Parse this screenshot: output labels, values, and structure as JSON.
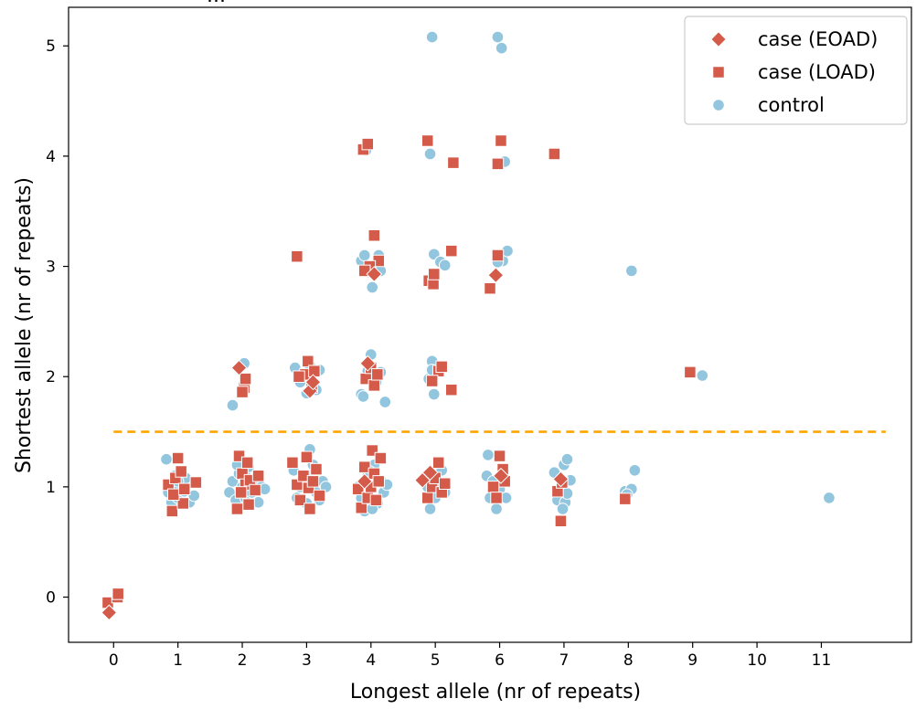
{
  "chart_data": {
    "type": "scatter",
    "title_fragment": "...",
    "xlabel": "Longest allele (nr of repeats)",
    "ylabel": "Shortest allele (nr of repeats)",
    "xlim": [
      -0.7,
      12.4
    ],
    "ylim": [
      -0.41,
      5.35
    ],
    "xticks": [
      "0",
      "1",
      "2",
      "3",
      "4",
      "5",
      "6",
      "7",
      "8",
      "9",
      "10",
      "11"
    ],
    "yticks": [
      "0",
      "1",
      "2",
      "3",
      "4",
      "5"
    ],
    "threshold_line": {
      "y": 1.5,
      "x_start": 0,
      "x_end": 12,
      "color": "#ffa500",
      "style": "dashed"
    },
    "legend": {
      "placement": "top-right"
    },
    "colors": {
      "case": "#d45a4a",
      "control": "#92c5de"
    },
    "series": [
      {
        "name": "case (EOAD)",
        "marker": "diamond",
        "points": [
          [
            -0.07,
            -0.14
          ],
          [
            1.95,
            2.08
          ],
          [
            3.05,
            1.87
          ],
          [
            3.1,
            1.95
          ],
          [
            3.95,
            2.12
          ],
          [
            4.05,
            2.93
          ],
          [
            4.8,
            1.06
          ],
          [
            4.92,
            1.13
          ],
          [
            5.94,
            2.92
          ],
          [
            6.95,
            1.07
          ],
          [
            6.02,
            1.1
          ],
          [
            3.9,
            1.05
          ]
        ]
      },
      {
        "name": "case (LOAD)",
        "marker": "square",
        "points": [
          [
            -0.09,
            -0.05
          ],
          [
            0.06,
            0.0
          ],
          [
            0.07,
            0.03
          ],
          [
            0.85,
            1.02
          ],
          [
            0.91,
            0.78
          ],
          [
            0.96,
            1.08
          ],
          [
            1.0,
            1.26
          ],
          [
            1.05,
            1.14
          ],
          [
            1.08,
            0.85
          ],
          [
            0.93,
            0.93
          ],
          [
            1.1,
            0.98
          ],
          [
            1.28,
            1.04
          ],
          [
            1.92,
            0.8
          ],
          [
            1.95,
            1.28
          ],
          [
            2.0,
            1.12
          ],
          [
            2.05,
            1.02
          ],
          [
            2.08,
            1.22
          ],
          [
            2.1,
            0.84
          ],
          [
            1.98,
            0.95
          ],
          [
            2.12,
            1.06
          ],
          [
            2.2,
            0.97
          ],
          [
            2.25,
            1.1
          ],
          [
            2.03,
            1.9
          ],
          [
            2.05,
            1.98
          ],
          [
            2.0,
            1.86
          ],
          [
            2.78,
            1.22
          ],
          [
            2.85,
            1.02
          ],
          [
            2.9,
            0.88
          ],
          [
            2.95,
            1.1
          ],
          [
            3.0,
            1.27
          ],
          [
            3.03,
            0.99
          ],
          [
            3.05,
            0.8
          ],
          [
            3.1,
            1.05
          ],
          [
            3.15,
            1.16
          ],
          [
            3.2,
            0.92
          ],
          [
            2.98,
            2.02
          ],
          [
            3.02,
            2.14
          ],
          [
            3.08,
            1.9
          ],
          [
            3.12,
            2.05
          ],
          [
            2.88,
            2.0
          ],
          [
            2.85,
            3.09
          ],
          [
            3.8,
            0.98
          ],
          [
            3.85,
            0.81
          ],
          [
            3.9,
            1.18
          ],
          [
            3.95,
            0.9
          ],
          [
            4.0,
            1.0
          ],
          [
            4.02,
            1.33
          ],
          [
            4.05,
            1.12
          ],
          [
            4.08,
            0.88
          ],
          [
            4.12,
            1.05
          ],
          [
            4.15,
            1.26
          ],
          [
            3.92,
            1.98
          ],
          [
            4.0,
            2.08
          ],
          [
            4.05,
            1.92
          ],
          [
            4.1,
            2.02
          ],
          [
            3.88,
            4.06
          ],
          [
            3.95,
            4.11
          ],
          [
            4.05,
            3.28
          ],
          [
            4.12,
            3.05
          ],
          [
            3.98,
            3.0
          ],
          [
            3.9,
            2.96
          ],
          [
            4.88,
            0.9
          ],
          [
            4.95,
            1.0
          ],
          [
            5.0,
            1.08
          ],
          [
            5.05,
            1.22
          ],
          [
            5.1,
            0.95
          ],
          [
            5.15,
            1.03
          ],
          [
            4.9,
            2.87
          ],
          [
            4.97,
            2.84
          ],
          [
            4.98,
            2.93
          ],
          [
            5.05,
            2.05
          ],
          [
            5.1,
            2.09
          ],
          [
            5.25,
            1.88
          ],
          [
            4.95,
            1.96
          ],
          [
            4.88,
            4.14
          ],
          [
            5.28,
            3.94
          ],
          [
            5.25,
            3.14
          ],
          [
            5.9,
            1.0
          ],
          [
            5.95,
            0.9
          ],
          [
            6.0,
            1.28
          ],
          [
            6.05,
            1.16
          ],
          [
            6.08,
            1.05
          ],
          [
            5.85,
            2.8
          ],
          [
            5.97,
            3.1
          ],
          [
            6.02,
            4.14
          ],
          [
            5.97,
            3.93
          ],
          [
            6.9,
            0.96
          ],
          [
            6.95,
            0.69
          ],
          [
            6.97,
            1.04
          ],
          [
            6.85,
            4.02
          ],
          [
            7.95,
            0.89
          ],
          [
            8.96,
            2.04
          ]
        ]
      },
      {
        "name": "control",
        "marker": "circle",
        "points": [
          [
            0.82,
            1.25
          ],
          [
            0.85,
            0.95
          ],
          [
            0.9,
            0.86
          ],
          [
            0.95,
            1.1
          ],
          [
            1.0,
            0.9
          ],
          [
            1.05,
            1.0
          ],
          [
            1.1,
            0.96
          ],
          [
            1.12,
            1.08
          ],
          [
            1.18,
            0.86
          ],
          [
            1.25,
            0.92
          ],
          [
            0.95,
            1.0
          ],
          [
            1.0,
            1.05
          ],
          [
            1.8,
            0.95
          ],
          [
            1.85,
            1.05
          ],
          [
            1.9,
            0.88
          ],
          [
            1.95,
            1.12
          ],
          [
            2.0,
            1.0
          ],
          [
            2.05,
            0.9
          ],
          [
            2.1,
            1.18
          ],
          [
            2.15,
            0.95
          ],
          [
            2.2,
            1.05
          ],
          [
            2.25,
            0.86
          ],
          [
            2.3,
            1.0
          ],
          [
            2.35,
            0.98
          ],
          [
            2.08,
            1.08
          ],
          [
            1.92,
            1.2
          ],
          [
            2.03,
            2.12
          ],
          [
            1.85,
            1.74
          ],
          [
            2.8,
            1.15
          ],
          [
            2.85,
            0.9
          ],
          [
            2.9,
            1.0
          ],
          [
            2.95,
            1.05
          ],
          [
            3.0,
            0.85
          ],
          [
            3.05,
            1.1
          ],
          [
            3.1,
            1.2
          ],
          [
            3.15,
            0.95
          ],
          [
            3.2,
            0.88
          ],
          [
            3.25,
            1.05
          ],
          [
            3.3,
            1.0
          ],
          [
            3.05,
            1.34
          ],
          [
            2.82,
            2.08
          ],
          [
            2.9,
            1.95
          ],
          [
            3.0,
            1.85
          ],
          [
            3.05,
            2.1
          ],
          [
            3.1,
            1.92
          ],
          [
            3.2,
            2.06
          ],
          [
            3.15,
            1.88
          ],
          [
            3.8,
            1.0
          ],
          [
            3.85,
            0.9
          ],
          [
            3.9,
            0.78
          ],
          [
            3.95,
            1.1
          ],
          [
            4.0,
            1.0
          ],
          [
            4.05,
            1.2
          ],
          [
            4.1,
            0.85
          ],
          [
            4.15,
            1.06
          ],
          [
            4.2,
            0.95
          ],
          [
            4.25,
            1.02
          ],
          [
            3.98,
            1.14
          ],
          [
            4.02,
            0.8
          ],
          [
            3.85,
            1.84
          ],
          [
            3.95,
            2.05
          ],
          [
            4.0,
            2.2
          ],
          [
            4.08,
            1.95
          ],
          [
            4.15,
            2.04
          ],
          [
            4.22,
            1.77
          ],
          [
            3.88,
            1.82
          ],
          [
            3.85,
            3.05
          ],
          [
            3.9,
            3.1
          ],
          [
            3.95,
            2.95
          ],
          [
            4.0,
            3.0
          ],
          [
            4.02,
            2.81
          ],
          [
            4.05,
            2.98
          ],
          [
            4.12,
            3.1
          ],
          [
            4.15,
            2.96
          ],
          [
            3.92,
            4.05
          ],
          [
            4.88,
            1.0
          ],
          [
            4.92,
            0.8
          ],
          [
            4.95,
            1.1
          ],
          [
            5.0,
            0.9
          ],
          [
            5.05,
            1.05
          ],
          [
            5.1,
            1.15
          ],
          [
            5.15,
            0.95
          ],
          [
            4.9,
            1.98
          ],
          [
            4.95,
            2.14
          ],
          [
            4.98,
            1.84
          ],
          [
            4.95,
            2.06
          ],
          [
            4.92,
            4.02
          ],
          [
            4.98,
            3.11
          ],
          [
            5.08,
            3.04
          ],
          [
            5.15,
            3.01
          ],
          [
            4.95,
            5.08
          ],
          [
            5.8,
            1.1
          ],
          [
            5.85,
            0.9
          ],
          [
            5.9,
            1.05
          ],
          [
            5.95,
            0.8
          ],
          [
            6.0,
            0.98
          ],
          [
            6.05,
            1.1
          ],
          [
            6.1,
            0.9
          ],
          [
            5.82,
            1.29
          ],
          [
            6.05,
            3.05
          ],
          [
            5.97,
            3.04
          ],
          [
            6.08,
            3.95
          ],
          [
            6.12,
            3.14
          ],
          [
            5.97,
            5.08
          ],
          [
            6.03,
            4.98
          ],
          [
            6.85,
            1.13
          ],
          [
            6.9,
            0.88
          ],
          [
            6.95,
            0.98
          ],
          [
            7.0,
            1.2
          ],
          [
            7.05,
            1.25
          ],
          [
            7.1,
            1.06
          ],
          [
            7.02,
            0.86
          ],
          [
            7.05,
            0.94
          ],
          [
            6.98,
            0.8
          ],
          [
            7.95,
            0.96
          ],
          [
            8.05,
            0.98
          ],
          [
            8.1,
            1.15
          ],
          [
            7.98,
            0.93
          ],
          [
            8.05,
            2.96
          ],
          [
            9.15,
            2.01
          ],
          [
            11.12,
            0.9
          ]
        ]
      }
    ]
  }
}
